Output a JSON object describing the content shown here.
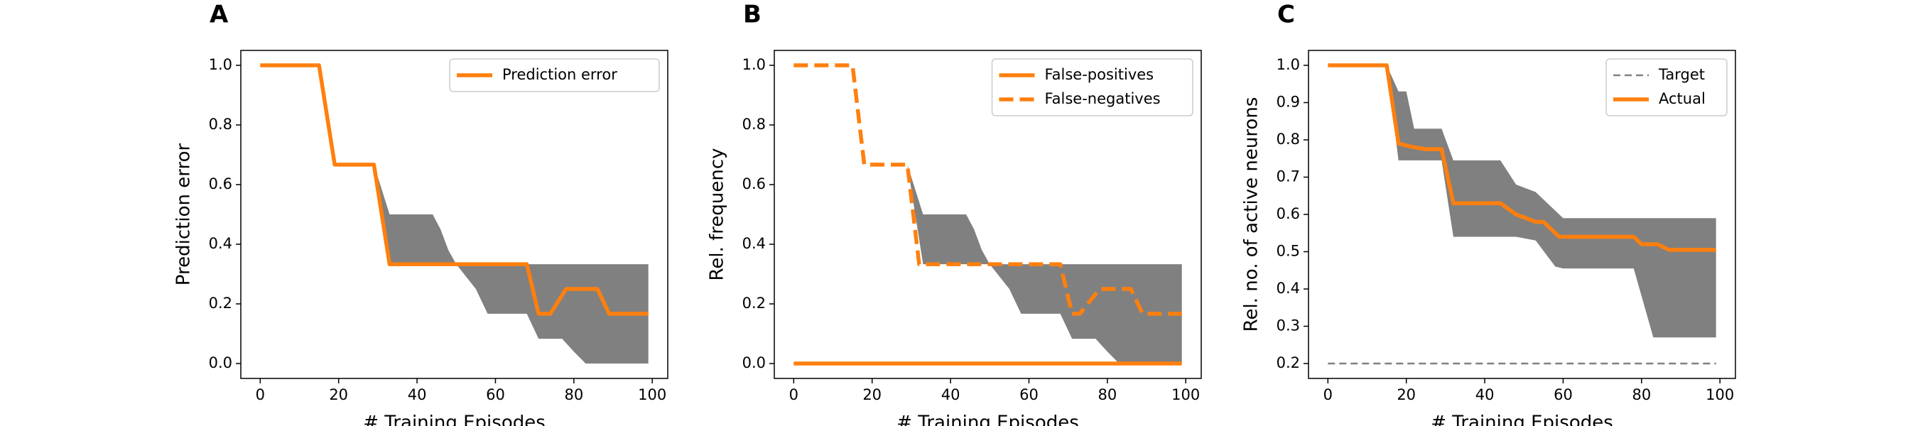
{
  "chart_data": [
    {
      "type": "line",
      "panel": "A",
      "xlabel": "# Training Episodes",
      "ylabel": "Prediction error",
      "xlim": [
        -4.95,
        103.95
      ],
      "ylim": [
        -0.05,
        1.05
      ],
      "xticks": [
        0,
        20,
        40,
        60,
        80,
        100
      ],
      "yticks": [
        {
          "value": 0,
          "label": "0.0"
        },
        0.2,
        0.4,
        0.6,
        0.8,
        {
          "value": 1,
          "label": "1.0"
        }
      ],
      "legend": "upper right",
      "band": {
        "color": "#808080",
        "x": [
          29,
          33,
          44,
          46,
          48,
          50,
          55,
          58,
          68,
          71,
          75,
          77,
          80,
          83,
          99
        ],
        "upper": [
          0.667,
          0.5,
          0.5,
          0.45,
          0.38,
          0.333,
          0.333,
          0.333,
          0.333,
          0.333,
          0.333,
          0.333,
          0.333,
          0.333,
          0.333
        ],
        "lower": [
          0.667,
          0.333,
          0.333,
          0.333,
          0.333,
          0.333,
          0.25,
          0.167,
          0.167,
          0.083,
          0.083,
          0.083,
          0.04,
          0.0,
          0.0
        ]
      },
      "series": [
        {
          "name": "Prediction error",
          "color": "#ff7f0e",
          "style": "solid",
          "x": [
            0,
            15,
            19,
            29,
            33,
            68,
            71,
            74,
            78,
            86,
            89,
            99
          ],
          "values": [
            1,
            1,
            0.667,
            0.667,
            0.333,
            0.333,
            0.167,
            0.167,
            0.25,
            0.25,
            0.167,
            0.167
          ]
        }
      ]
    },
    {
      "type": "line",
      "panel": "B",
      "xlabel": "# Training Episodes",
      "ylabel": "Rel. frequency",
      "xlim": [
        -4.95,
        103.95
      ],
      "ylim": [
        -0.05,
        1.05
      ],
      "xticks": [
        0,
        20,
        40,
        60,
        80,
        100
      ],
      "yticks": [
        {
          "value": 0,
          "label": "0.0"
        },
        0.2,
        0.4,
        0.6,
        0.8,
        {
          "value": 1,
          "label": "1.0"
        }
      ],
      "legend": "upper right",
      "band": {
        "color": "#808080",
        "x": [
          29,
          33,
          44,
          46,
          48,
          50,
          55,
          58,
          68,
          71,
          75,
          77,
          80,
          83,
          99
        ],
        "upper": [
          0.667,
          0.5,
          0.5,
          0.45,
          0.38,
          0.333,
          0.333,
          0.333,
          0.333,
          0.333,
          0.333,
          0.333,
          0.333,
          0.333,
          0.333
        ],
        "lower": [
          0.667,
          0.333,
          0.333,
          0.333,
          0.333,
          0.333,
          0.25,
          0.167,
          0.167,
          0.083,
          0.083,
          0.083,
          0.04,
          0.0,
          0.0
        ]
      },
      "series": [
        {
          "name": "False-positives",
          "color": "#ff7f0e",
          "style": "solid",
          "x": [
            0,
            99
          ],
          "values": [
            0,
            0
          ]
        },
        {
          "name": "False-negatives",
          "color": "#ff7f0e",
          "style": "dashed",
          "x": [
            0,
            15,
            18,
            29,
            32,
            68,
            71,
            73,
            78,
            86,
            89,
            99
          ],
          "values": [
            1,
            1,
            0.667,
            0.667,
            0.333,
            0.333,
            0.167,
            0.167,
            0.25,
            0.25,
            0.167,
            0.167
          ]
        }
      ]
    },
    {
      "type": "line",
      "panel": "C",
      "xlabel": "# Training Episodes",
      "ylabel": "Rel. no. of active neurons",
      "xlim": [
        -4.95,
        103.95
      ],
      "ylim": [
        0.16,
        1.04
      ],
      "xticks": [
        0,
        20,
        40,
        60,
        80,
        100
      ],
      "yticks": [
        0.2,
        0.3,
        0.4,
        0.5,
        0.6,
        0.7,
        0.8,
        0.9,
        {
          "value": 1,
          "label": "1.0"
        }
      ],
      "legend": "upper right",
      "band": {
        "color": "#808080",
        "x": [
          15,
          18,
          20,
          22,
          25,
          29,
          32,
          44,
          48,
          53,
          58,
          60,
          78,
          83,
          99
        ],
        "upper": [
          1,
          0.93,
          0.93,
          0.83,
          0.83,
          0.83,
          0.745,
          0.745,
          0.68,
          0.66,
          0.61,
          0.59,
          0.59,
          0.59,
          0.59
        ],
        "lower": [
          1,
          0.745,
          0.745,
          0.745,
          0.745,
          0.745,
          0.54,
          0.54,
          0.54,
          0.53,
          0.46,
          0.455,
          0.455,
          0.27,
          0.27
        ]
      },
      "series": [
        {
          "name": "Target",
          "color": "#808080",
          "style": "dashed",
          "thin": true,
          "x": [
            0,
            99
          ],
          "values": [
            0.2,
            0.2
          ]
        },
        {
          "name": "Actual",
          "color": "#ff7f0e",
          "style": "solid",
          "x": [
            0,
            15,
            18,
            22,
            25,
            29,
            32,
            44,
            48,
            53,
            55,
            59,
            78,
            80,
            84,
            87,
            99
          ],
          "values": [
            1,
            1,
            0.79,
            0.78,
            0.775,
            0.775,
            0.63,
            0.63,
            0.6,
            0.58,
            0.58,
            0.54,
            0.54,
            0.52,
            0.52,
            0.505,
            0.505
          ]
        }
      ]
    }
  ]
}
